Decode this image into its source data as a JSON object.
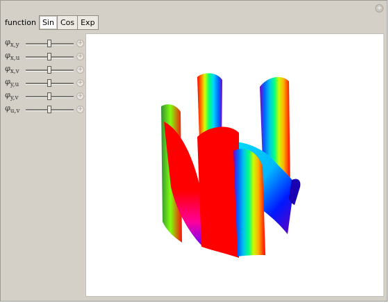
{
  "toolbar": {
    "label": "function",
    "tabs": [
      {
        "label": "Sin",
        "active": true
      },
      {
        "label": "Cos",
        "active": false
      },
      {
        "label": "Exp",
        "active": false
      }
    ]
  },
  "controls": [
    {
      "symbol": "φ",
      "sub": "x,y"
    },
    {
      "symbol": "φ",
      "sub": "x,u"
    },
    {
      "symbol": "φ",
      "sub": "x,v"
    },
    {
      "symbol": "φ",
      "sub": "y,u"
    },
    {
      "symbol": "φ",
      "sub": "y,v"
    },
    {
      "symbol": "φ",
      "sub": "u,v"
    }
  ],
  "window": {
    "close_glyph": "+"
  },
  "plot": {
    "accent": "#ff0000"
  }
}
